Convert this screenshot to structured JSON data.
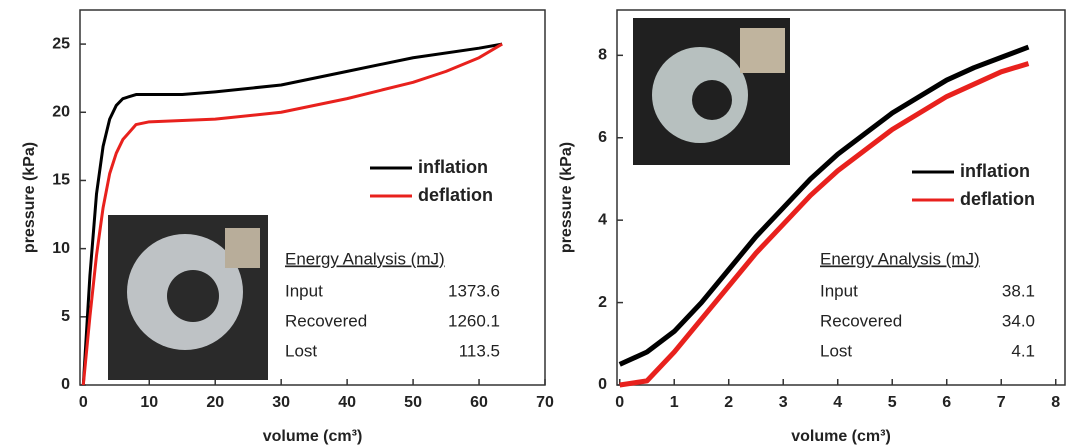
{
  "chart_data": [
    {
      "type": "line",
      "x_label": "volume (cm³)",
      "y_label": "pressure (kPa)",
      "xlim": [
        -0.5,
        70
      ],
      "ylim": [
        0,
        27.5
      ],
      "xticks": [
        0,
        10,
        20,
        30,
        40,
        50,
        60,
        70
      ],
      "yticks": [
        0,
        5,
        10,
        15,
        20,
        25
      ],
      "legend": "right",
      "series": [
        {
          "name": "inflation",
          "color": "#000000",
          "x": [
            0,
            1,
            2,
            3,
            4,
            5,
            6,
            8,
            10,
            15,
            20,
            30,
            40,
            50,
            60,
            63.5
          ],
          "values": [
            0,
            8,
            14,
            17.5,
            19.5,
            20.5,
            21,
            21.3,
            21.3,
            21.3,
            21.5,
            22,
            23,
            24,
            24.7,
            25
          ]
        },
        {
          "name": "deflation",
          "color": "#e8211d",
          "x": [
            63.5,
            60,
            55,
            50,
            40,
            30,
            20,
            10,
            8,
            6,
            5,
            4,
            3,
            2,
            1,
            0
          ],
          "values": [
            25,
            24,
            23,
            22.2,
            21,
            20,
            19.5,
            19.3,
            19.1,
            18,
            17,
            15.5,
            13,
            9.5,
            5,
            0
          ]
        }
      ],
      "energy_table": {
        "title": "Energy Analysis (mJ)",
        "rows": [
          [
            "Input",
            "1373.6"
          ],
          [
            "Recovered",
            "1260.1"
          ],
          [
            "Lost",
            "113.5"
          ]
        ]
      }
    },
    {
      "type": "line",
      "x_label": "volume (cm³)",
      "y_label": "pressure (kPa)",
      "xlim": [
        -0.05,
        8.17
      ],
      "ylim": [
        0,
        9.1
      ],
      "xticks": [
        0,
        1,
        2,
        3,
        4,
        5,
        6,
        7,
        8
      ],
      "yticks": [
        0,
        2,
        4,
        6,
        8
      ],
      "legend": "right",
      "series": [
        {
          "name": "inflation",
          "color": "#000000",
          "x": [
            0,
            0.5,
            1,
            1.5,
            2,
            2.5,
            3,
            3.5,
            4,
            4.5,
            5,
            5.5,
            6,
            6.5,
            7,
            7.5
          ],
          "values": [
            0.5,
            0.8,
            1.3,
            2,
            2.8,
            3.6,
            4.3,
            5,
            5.6,
            6.1,
            6.6,
            7,
            7.4,
            7.7,
            7.95,
            8.2
          ]
        },
        {
          "name": "deflation",
          "color": "#e8211d",
          "x": [
            0,
            0.5,
            1,
            1.5,
            2,
            2.5,
            3,
            3.5,
            4,
            4.5,
            5,
            5.5,
            6,
            6.5,
            7,
            7.5
          ],
          "values": [
            0,
            0.1,
            0.8,
            1.6,
            2.4,
            3.2,
            3.9,
            4.6,
            5.2,
            5.7,
            6.2,
            6.6,
            7,
            7.3,
            7.6,
            7.8
          ]
        }
      ],
      "energy_table": {
        "title": "Energy Analysis (mJ)",
        "rows": [
          [
            "Input",
            "38.1"
          ],
          [
            "Recovered",
            "34.0"
          ],
          [
            "Lost",
            "4.1"
          ]
        ]
      }
    }
  ]
}
